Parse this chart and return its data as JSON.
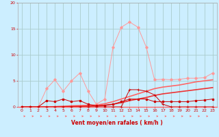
{
  "xlabel": "Vent moyen/en rafales ( km/h )",
  "bg_color": "#cceeff",
  "grid_color": "#aacccc",
  "xlim": [
    -0.5,
    23.5
  ],
  "ylim": [
    0,
    20
  ],
  "xticks": [
    0,
    1,
    2,
    3,
    4,
    5,
    6,
    7,
    8,
    9,
    10,
    11,
    12,
    13,
    14,
    15,
    16,
    17,
    18,
    19,
    20,
    21,
    22,
    23
  ],
  "yticks": [
    0,
    5,
    10,
    15,
    20
  ],
  "line1_x": [
    0,
    1,
    2,
    3,
    4,
    5,
    6,
    7,
    8,
    9,
    10,
    11,
    12,
    13,
    14,
    15,
    16,
    17,
    18,
    19,
    20,
    21,
    22,
    23
  ],
  "line1_y": [
    0.0,
    0.0,
    0.0,
    3.5,
    5.2,
    3.0,
    5.0,
    6.5,
    3.0,
    0.5,
    1.5,
    11.5,
    15.3,
    16.3,
    15.3,
    11.5,
    5.2,
    5.3,
    5.2,
    5.3,
    5.5,
    5.5,
    5.6,
    6.5
  ],
  "line1_color": "#ff9999",
  "line2_x": [
    0,
    1,
    2,
    3,
    4,
    5,
    6,
    7,
    8,
    9,
    10,
    11,
    12,
    13,
    14,
    15,
    16,
    17,
    18,
    19,
    20,
    21,
    22,
    23
  ],
  "line2_y": [
    0.0,
    0.0,
    0.0,
    0.0,
    0.0,
    0.0,
    0.0,
    0.0,
    0.0,
    0.0,
    0.0,
    0.0,
    0.0,
    3.3,
    3.3,
    3.0,
    2.3,
    0.5,
    0.0,
    0.0,
    0.0,
    0.0,
    0.0,
    0.0
  ],
  "line2_color": "#cc0000",
  "line3_x": [
    0,
    1,
    2,
    3,
    4,
    5,
    6,
    7,
    8,
    9,
    10,
    11,
    12,
    13,
    14,
    15,
    16,
    17,
    18,
    19,
    20,
    21,
    22,
    23
  ],
  "line3_y": [
    0.0,
    0.0,
    0.0,
    1.2,
    1.0,
    1.5,
    1.0,
    1.2,
    0.5,
    0.2,
    0.3,
    0.5,
    1.0,
    1.5,
    1.5,
    1.5,
    1.0,
    1.0,
    1.0,
    1.0,
    1.0,
    1.2,
    1.3,
    1.5
  ],
  "line3_color": "#cc0000",
  "line4_x": [
    0,
    1,
    2,
    3,
    4,
    5,
    6,
    7,
    8,
    9,
    10,
    11,
    12,
    13,
    14,
    15,
    16,
    17,
    18,
    19,
    20,
    21,
    22,
    23
  ],
  "line4_y": [
    0.0,
    0.0,
    0.0,
    0.0,
    0.05,
    0.1,
    0.2,
    0.25,
    0.3,
    0.35,
    0.6,
    1.0,
    1.5,
    2.0,
    2.5,
    3.0,
    3.5,
    3.8,
    4.0,
    4.2,
    4.5,
    4.8,
    5.0,
    5.2
  ],
  "line4_color": "#ff6666",
  "line5_x": [
    0,
    1,
    2,
    3,
    4,
    5,
    6,
    7,
    8,
    9,
    10,
    11,
    12,
    13,
    14,
    15,
    16,
    17,
    18,
    19,
    20,
    21,
    22,
    23
  ],
  "line5_y": [
    0.0,
    0.0,
    0.0,
    0.0,
    0.02,
    0.05,
    0.08,
    0.1,
    0.15,
    0.18,
    0.3,
    0.5,
    0.8,
    1.2,
    1.5,
    1.8,
    2.2,
    2.5,
    2.7,
    2.9,
    3.1,
    3.3,
    3.5,
    3.7
  ],
  "line5_color": "#ee3333",
  "arrow_color": "#ff6666",
  "xlabel_color": "#cc0000",
  "tick_color": "#cc0000",
  "spine_color": "#aaaaaa"
}
